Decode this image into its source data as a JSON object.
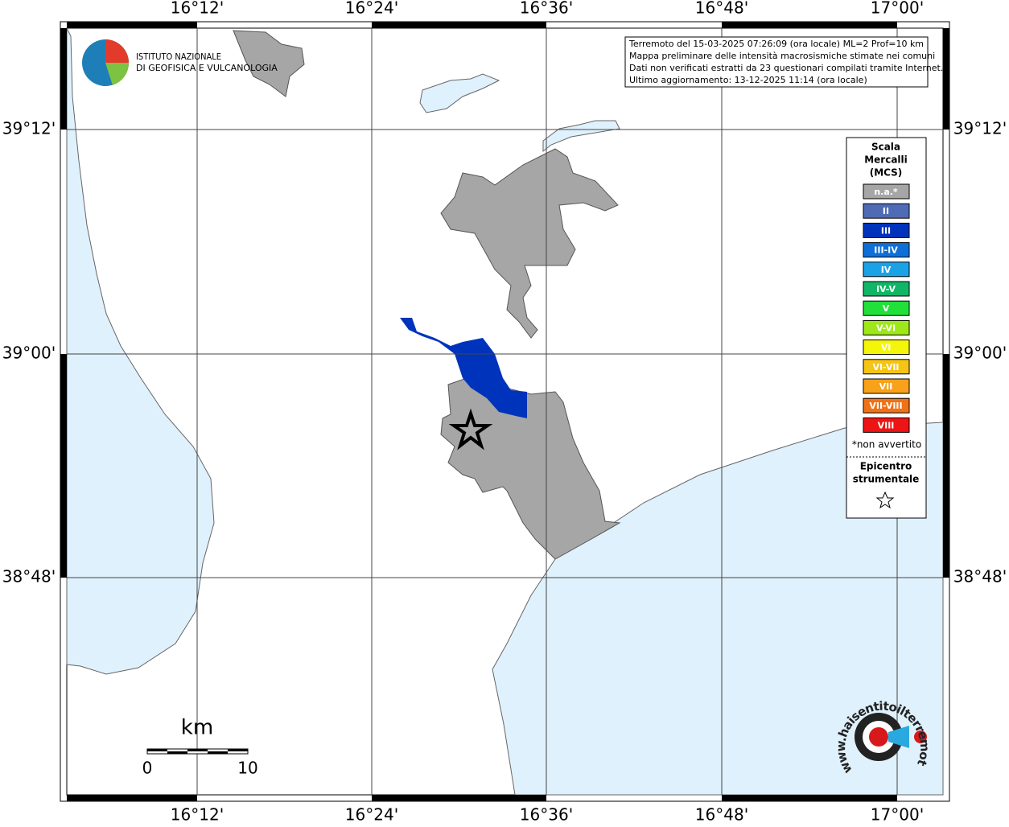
{
  "map": {
    "lon_labels": [
      "16°12'",
      "16°24'",
      "16°36'",
      "16°48'",
      "17°00'"
    ],
    "lat_labels": [
      "39°12'",
      "39°00'",
      "38°48'"
    ],
    "info": [
      "Terremoto del 15-03-2025 07:26:09 (ora locale) ML=2 Prof=10 km",
      "Mappa preliminare delle intensità macrosismiche stimate nei comuni",
      "Dati non verificati estratti da 23 questionari compilati tramite Internet.",
      "Ultimo aggiornamento: 13-12-2025 11:14 (ora locale)"
    ],
    "logo": [
      "ISTITUTO NAZIONALE",
      "DI GEOFISICA E VULCANOLOGIA"
    ],
    "legend": {
      "title": [
        "Scala",
        "Mercalli",
        "(MCS)"
      ],
      "items": [
        {
          "label": "n.a.*",
          "color": "#a6a6a6"
        },
        {
          "label": "II",
          "color": "#4f6bb5"
        },
        {
          "label": "III",
          "color": "#0033bb"
        },
        {
          "label": "III-IV",
          "color": "#0f6fd8"
        },
        {
          "label": "IV",
          "color": "#19a3e6"
        },
        {
          "label": "IV-V",
          "color": "#11b566"
        },
        {
          "label": "V",
          "color": "#22e03a"
        },
        {
          "label": "V-VI",
          "color": "#9ee81a"
        },
        {
          "label": "VI",
          "color": "#f5f50a"
        },
        {
          "label": "VI-VII",
          "color": "#f5c414"
        },
        {
          "label": "VII",
          "color": "#f7a21a"
        },
        {
          "label": "VII-VIII",
          "color": "#f07216"
        },
        {
          "label": "VIII",
          "color": "#ec1414"
        }
      ],
      "note": "*non avvertito",
      "epicentre": [
        "Epicentro",
        "strumentale"
      ]
    },
    "scale": {
      "unit": "km",
      "start": "0",
      "end": "10"
    },
    "site": "www.haisentitoilterremoto.it"
  }
}
